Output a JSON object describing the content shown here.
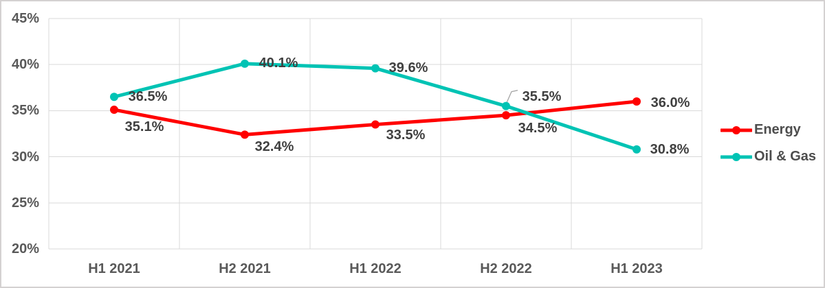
{
  "chart_data": {
    "type": "line",
    "title": "",
    "xlabel": "",
    "ylabel": "",
    "categories": [
      "H1 2021",
      "H2 2021",
      "H1 2022",
      "H2 2022",
      "H1 2023"
    ],
    "series": [
      {
        "name": "Energy",
        "color": "#ff0000",
        "values": [
          35.1,
          32.4,
          33.5,
          34.5,
          36.0
        ],
        "point_labels": [
          "35.1%",
          "32.4%",
          "33.5%",
          "34.5%",
          "36.0%"
        ]
      },
      {
        "name": "Oil & Gas",
        "color": "#00c3b4",
        "values": [
          36.5,
          40.1,
          39.6,
          35.5,
          30.8
        ],
        "point_labels": [
          "36.5%",
          "40.1%",
          "39.6%",
          "35.5%",
          "30.8%"
        ]
      }
    ],
    "ylim": [
      20,
      45
    ],
    "y_ticks": [
      {
        "value": 45,
        "label": "45%"
      },
      {
        "value": 40,
        "label": "40%"
      },
      {
        "value": 35,
        "label": "35%"
      },
      {
        "value": 30,
        "label": "30%"
      },
      {
        "value": 25,
        "label": "25%"
      },
      {
        "value": 20,
        "label": "20%"
      }
    ],
    "grid": true,
    "legend_position": "right"
  },
  "colors": {
    "grid_line": "#d9d9d9",
    "axis_text": "#595959",
    "data_label_text": "#404040",
    "leader_line": "#a6a6a6",
    "frame_border": "#d4d1d1",
    "background": "#ffffff"
  }
}
